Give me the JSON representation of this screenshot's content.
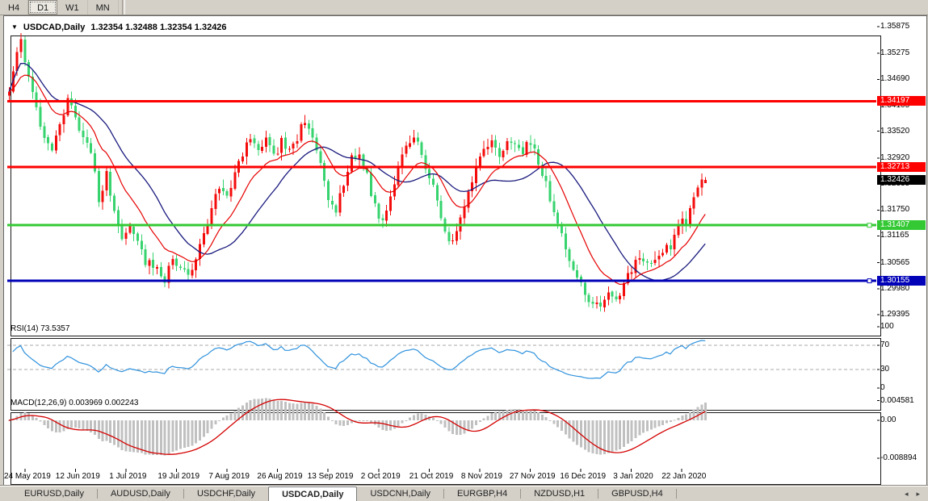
{
  "toolbar": {
    "buttons": [
      {
        "label": "H4",
        "active": false
      },
      {
        "label": "D1",
        "active": true
      },
      {
        "label": "W1",
        "active": false
      },
      {
        "label": "MN",
        "active": false
      }
    ]
  },
  "chart": {
    "symbol_title": "USDCAD,Daily",
    "quote": "1.32354 1.32488 1.32354 1.32426",
    "price_labels": {
      "resistance1": "1.34197",
      "resistance2": "1.32713",
      "last": "1.32426",
      "support1": "1.31407",
      "support2": "1.30155"
    }
  },
  "price_axis": {
    "ticks": [
      "1.35875",
      "1.35275",
      "1.34690",
      "1.34105",
      "1.33520",
      "1.32920",
      "1.32335",
      "1.31750",
      "1.31165",
      "1.30565",
      "1.29980",
      "1.29395"
    ]
  },
  "date_axis": {
    "labels": [
      "24 May 2019",
      "12 Jun 2019",
      "1 Jul 2019",
      "19 Jul 2019",
      "7 Aug 2019",
      "26 Aug 2019",
      "13 Sep 2019",
      "2 Oct 2019",
      "21 Oct 2019",
      "8 Nov 2019",
      "27 Nov 2019",
      "16 Dec 2019",
      "3 Jan 2020",
      "22 Jan 2020"
    ]
  },
  "rsi": {
    "title": "RSI(14) 73.5357",
    "levels": [
      "100",
      "70",
      "30",
      "0"
    ],
    "level_values": [
      100,
      70,
      30,
      0
    ],
    "dashed_levels": [
      70,
      30
    ],
    "value": 73.5357
  },
  "macd": {
    "title": "MACD(12,26,9) 0.003969 0.002243",
    "levels": [
      "0.004581",
      "0.00",
      "-0.008894"
    ],
    "level_values": [
      0.004581,
      0.0,
      -0.008894
    ],
    "main": 0.003969,
    "signal": 0.002243
  },
  "tabs": {
    "active_index": 3,
    "items": [
      {
        "label": "EURUSD,Daily"
      },
      {
        "label": "AUDUSD,Daily"
      },
      {
        "label": "USDCHF,Daily"
      },
      {
        "label": "USDCAD,Daily"
      },
      {
        "label": "USDCNH,Daily"
      },
      {
        "label": "EURGBP,H4"
      },
      {
        "label": "NZDUSD,H1"
      },
      {
        "label": "GBPUSD,H4"
      }
    ],
    "scroll_left": "◂",
    "scroll_right": "▸"
  },
  "colors": {
    "candle_up": "#f40b0b",
    "candle_down": "#36d36e",
    "ma_fast": "#e60000",
    "ma_slow": "#1a1a7e",
    "hline_red": "#fd0000",
    "hline_green": "#34c934",
    "hline_blue": "#0202b8",
    "last_label_bg": "#000000",
    "rsi_line": "#2f92dd",
    "macd_hist": "#c0c0c0",
    "macd_signal": "#d40000"
  },
  "chart_data": {
    "type": "candlestick",
    "symbol": "USDCAD",
    "timeframe": "Daily",
    "bar_count": 180,
    "ohlc_last": {
      "open": 1.32354,
      "high": 1.32488,
      "low": 1.32354,
      "close": 1.32426
    },
    "price_range": {
      "top": 1.35875,
      "bottom": 1.29395
    },
    "anchors": [
      [
        0,
        1.344
      ],
      [
        2,
        1.353
      ],
      [
        3,
        1.3552
      ],
      [
        5,
        1.3478
      ],
      [
        7,
        1.34
      ],
      [
        9,
        1.3345
      ],
      [
        11,
        1.3302
      ],
      [
        13,
        1.3368
      ],
      [
        15,
        1.3428
      ],
      [
        17,
        1.3382
      ],
      [
        19,
        1.3342
      ],
      [
        21,
        1.3305
      ],
      [
        23,
        1.3202
      ],
      [
        25,
        1.3252
      ],
      [
        27,
        1.3162
      ],
      [
        29,
        1.3112
      ],
      [
        31,
        1.3144
      ],
      [
        33,
        1.3096
      ],
      [
        35,
        1.3062
      ],
      [
        38,
        1.3036
      ],
      [
        40,
        1.3021
      ],
      [
        42,
        1.3068
      ],
      [
        44,
        1.3042
      ],
      [
        46,
        1.3026
      ],
      [
        48,
        1.3072
      ],
      [
        50,
        1.3118
      ],
      [
        52,
        1.3178
      ],
      [
        54,
        1.3228
      ],
      [
        56,
        1.3208
      ],
      [
        58,
        1.3258
      ],
      [
        60,
        1.3298
      ],
      [
        62,
        1.3338
      ],
      [
        64,
        1.3312
      ],
      [
        66,
        1.3344
      ],
      [
        68,
        1.3292
      ],
      [
        70,
        1.3328
      ],
      [
        72,
        1.3302
      ],
      [
        74,
        1.3338
      ],
      [
        76,
        1.3378
      ],
      [
        78,
        1.3332
      ],
      [
        80,
        1.3272
      ],
      [
        82,
        1.3202
      ],
      [
        84,
        1.3176
      ],
      [
        86,
        1.3232
      ],
      [
        88,
        1.3288
      ],
      [
        90,
        1.3308
      ],
      [
        92,
        1.3252
      ],
      [
        94,
        1.3182
      ],
      [
        96,
        1.3146
      ],
      [
        98,
        1.3202
      ],
      [
        100,
        1.3268
      ],
      [
        102,
        1.3326
      ],
      [
        104,
        1.3338
      ],
      [
        106,
        1.3302
      ],
      [
        108,
        1.3252
      ],
      [
        110,
        1.3192
      ],
      [
        112,
        1.3132
      ],
      [
        114,
        1.3096
      ],
      [
        116,
        1.3152
      ],
      [
        118,
        1.3222
      ],
      [
        120,
        1.3272
      ],
      [
        122,
        1.3312
      ],
      [
        124,
        1.3332
      ],
      [
        126,
        1.3302
      ],
      [
        128,
        1.3322
      ],
      [
        130,
        1.3332
      ],
      [
        132,
        1.3312
      ],
      [
        134,
        1.3332
      ],
      [
        136,
        1.3282
      ],
      [
        138,
        1.3232
      ],
      [
        140,
        1.3172
      ],
      [
        142,
        1.3112
      ],
      [
        144,
        1.3062
      ],
      [
        146,
        1.3022
      ],
      [
        148,
        1.2986
      ],
      [
        150,
        1.2962
      ],
      [
        152,
        1.2952
      ],
      [
        154,
        1.2986
      ],
      [
        156,
        1.2968
      ],
      [
        158,
        1.3012
      ],
      [
        160,
        1.3042
      ],
      [
        162,
        1.3076
      ],
      [
        164,
        1.3046
      ],
      [
        166,
        1.3062
      ],
      [
        168,
        1.3078
      ],
      [
        170,
        1.3094
      ],
      [
        171,
        1.3122
      ],
      [
        172,
        1.314
      ],
      [
        173,
        1.3154
      ],
      [
        174,
        1.3142
      ],
      [
        175,
        1.3174
      ],
      [
        176,
        1.32
      ],
      [
        177,
        1.3224
      ],
      [
        178,
        1.324
      ],
      [
        179,
        1.32426
      ]
    ],
    "horizontal_lines": [
      {
        "price": 1.34197,
        "color": "#fd0000",
        "width": 3
      },
      {
        "price": 1.32713,
        "color": "#fd0000",
        "width": 3
      },
      {
        "price": 1.31407,
        "color": "#34c934",
        "width": 3
      },
      {
        "price": 1.30155,
        "color": "#0202b8",
        "width": 3
      }
    ],
    "moving_averages": [
      {
        "name": "fast",
        "method": "ema",
        "period": 13,
        "color": "#e60000"
      },
      {
        "name": "slow",
        "method": "sma",
        "period": 24,
        "color": "#1a1a7e"
      }
    ],
    "indicators": [
      {
        "name": "RSI",
        "period": 14,
        "last_value": 73.5357,
        "range": [
          0,
          100
        ],
        "levels": [
          70,
          30
        ]
      },
      {
        "name": "MACD",
        "params": [
          12,
          26,
          9
        ],
        "last_main": 0.003969,
        "last_signal": 0.002243,
        "axis": [
          0.004581,
          0.0,
          -0.008894
        ]
      }
    ]
  }
}
